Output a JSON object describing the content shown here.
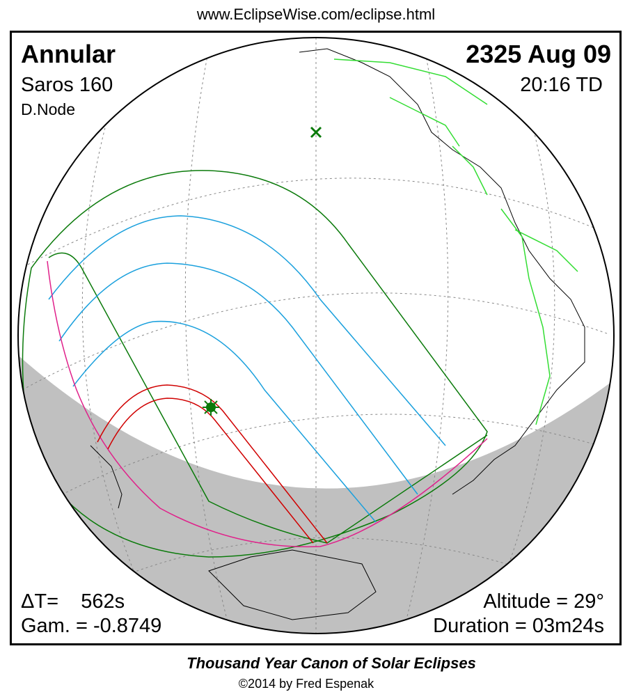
{
  "header": {
    "url": "www.EclipseWise.com/eclipse.html"
  },
  "eclipse": {
    "type": "Annular",
    "date": "2325 Aug 09",
    "saros": "Saros 160",
    "time": "20:16 TD",
    "node": "D.Node",
    "delta_t": "ΔT=    562s",
    "gamma": "Gam. = -0.8749",
    "altitude": "Altitude = 29°",
    "duration": "Duration = 03m24s"
  },
  "footer": {
    "title": "Thousand Year Canon of Solar Eclipses",
    "credit": "©2014 by Fred Espenak"
  }
}
